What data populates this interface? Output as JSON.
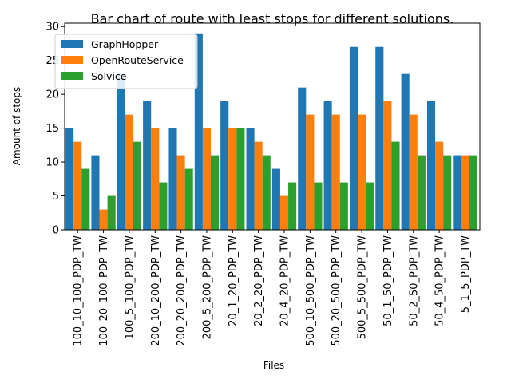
{
  "chart_data": {
    "type": "bar",
    "title": "Bar chart of route with least stops for different solutions.",
    "xlabel": "Files",
    "ylabel": "Amount of stops",
    "ylim": [
      0,
      30.5
    ],
    "yticks": [
      0,
      5,
      10,
      15,
      20,
      25,
      30
    ],
    "grid": false,
    "legend_position": "top-left",
    "categories": [
      "100_10_100_PDP_TW",
      "100_20_100_PDP_TW",
      "100_5_100_PDP_TW",
      "200_10_200_PDP_TW",
      "200_20_200_PDP_TW",
      "200_5_200_PDP_TW",
      "20_1_20_PDP_TW",
      "20_2_20_PDP_TW",
      "20_4_20_PDP_TW",
      "500_10_500_PDP_TW",
      "500_20_500_PDP_TW",
      "500_5_500_PDP_TW",
      "50_1_50_PDP_TW",
      "50_2_50_PDP_TW",
      "50_4_50_PDP_TW",
      "5_1_5_PDP_TW"
    ],
    "series": [
      {
        "name": "GraphHopper",
        "color": "#1f77b4",
        "values": [
          15,
          11,
          23,
          19,
          15,
          29,
          19,
          15,
          9,
          21,
          19,
          27,
          27,
          23,
          19,
          11
        ]
      },
      {
        "name": "OpenRouteService",
        "color": "#ff7f0e",
        "values": [
          13,
          3,
          17,
          15,
          11,
          15,
          15,
          13,
          5,
          17,
          17,
          17,
          19,
          17,
          13,
          11
        ]
      },
      {
        "name": "Solvice",
        "color": "#2ca02c",
        "values": [
          9,
          5,
          13,
          7,
          9,
          11,
          15,
          11,
          7,
          7,
          7,
          7,
          13,
          11,
          11,
          11
        ]
      }
    ]
  }
}
